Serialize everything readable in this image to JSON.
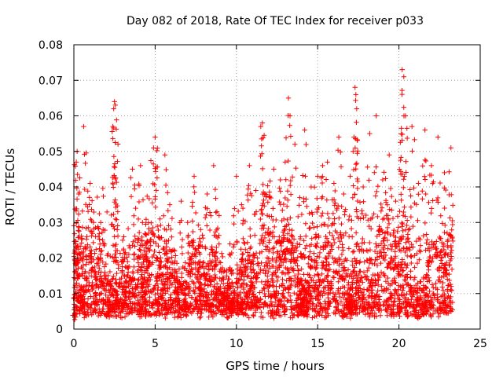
{
  "chart_data": {
    "type": "scatter",
    "title": "Day 082 of 2018, Rate Of TEC Index for receiver p033",
    "xlabel": "GPS time / hours",
    "ylabel": "ROTI / TECUs",
    "xlim": [
      0,
      25
    ],
    "ylim": [
      0,
      0.08
    ],
    "xticks": [
      0,
      5,
      10,
      15,
      20,
      25
    ],
    "xtick_labels": [
      "0",
      "5",
      "10",
      "15",
      "20",
      "25"
    ],
    "yticks": [
      0,
      0.01,
      0.02,
      0.03,
      0.04,
      0.05,
      0.06,
      0.07,
      0.08
    ],
    "ytick_labels": [
      "0",
      "0.01",
      "0.02",
      "0.03",
      "0.04",
      "0.05",
      "0.06",
      "0.07",
      "0.08"
    ],
    "grid": true,
    "marker": "+",
    "color": "#ff0000",
    "data_range_hours": [
      0.0,
      23.3
    ],
    "series": [
      {
        "name": "ROTI",
        "points": [
          [
            0.05,
            0.006
          ],
          [
            0.1,
            0.024
          ],
          [
            0.15,
            0.047
          ],
          [
            0.2,
            0.05
          ],
          [
            0.3,
            0.038
          ],
          [
            0.45,
            0.012
          ],
          [
            0.6,
            0.057
          ],
          [
            0.8,
            0.026
          ],
          [
            1.0,
            0.041
          ],
          [
            1.2,
            0.03
          ],
          [
            1.5,
            0.018
          ],
          [
            1.8,
            0.028
          ],
          [
            2.1,
            0.009
          ],
          [
            2.4,
            0.057
          ],
          [
            2.45,
            0.062
          ],
          [
            2.5,
            0.064
          ],
          [
            2.55,
            0.063
          ],
          [
            2.7,
            0.033
          ],
          [
            3.0,
            0.025
          ],
          [
            3.3,
            0.019
          ],
          [
            3.6,
            0.045
          ],
          [
            3.8,
            0.034
          ],
          [
            4.1,
            0.046
          ],
          [
            4.3,
            0.02
          ],
          [
            4.6,
            0.027
          ],
          [
            4.9,
            0.051
          ],
          [
            5.0,
            0.054
          ],
          [
            5.3,
            0.031
          ],
          [
            5.6,
            0.049
          ],
          [
            5.9,
            0.035
          ],
          [
            6.2,
            0.022
          ],
          [
            6.6,
            0.036
          ],
          [
            7.0,
            0.03
          ],
          [
            7.4,
            0.043
          ],
          [
            7.8,
            0.028
          ],
          [
            8.2,
            0.038
          ],
          [
            8.6,
            0.046
          ],
          [
            8.8,
            0.033
          ],
          [
            9.2,
            0.014
          ],
          [
            9.6,
            0.024
          ],
          [
            10.0,
            0.043
          ],
          [
            10.4,
            0.034
          ],
          [
            10.8,
            0.046
          ],
          [
            11.2,
            0.039
          ],
          [
            11.5,
            0.057
          ],
          [
            11.6,
            0.058
          ],
          [
            11.9,
            0.032
          ],
          [
            12.3,
            0.045
          ],
          [
            12.7,
            0.042
          ],
          [
            13.0,
            0.047
          ],
          [
            13.2,
            0.065
          ],
          [
            13.3,
            0.06
          ],
          [
            13.6,
            0.052
          ],
          [
            13.9,
            0.037
          ],
          [
            14.2,
            0.056
          ],
          [
            14.6,
            0.04
          ],
          [
            15.0,
            0.043
          ],
          [
            15.3,
            0.046
          ],
          [
            15.6,
            0.047
          ],
          [
            16.0,
            0.041
          ],
          [
            16.3,
            0.054
          ],
          [
            16.6,
            0.038
          ],
          [
            17.0,
            0.043
          ],
          [
            17.3,
            0.068
          ],
          [
            17.35,
            0.066
          ],
          [
            17.4,
            0.062
          ],
          [
            17.8,
            0.04
          ],
          [
            18.2,
            0.055
          ],
          [
            18.6,
            0.06
          ],
          [
            19.0,
            0.042
          ],
          [
            19.4,
            0.049
          ],
          [
            19.8,
            0.036
          ],
          [
            20.2,
            0.073
          ],
          [
            20.3,
            0.071
          ],
          [
            20.4,
            0.06
          ],
          [
            20.8,
            0.057
          ],
          [
            21.2,
            0.041
          ],
          [
            21.6,
            0.056
          ],
          [
            22.0,
            0.046
          ],
          [
            22.4,
            0.054
          ],
          [
            22.8,
            0.044
          ],
          [
            23.2,
            0.051
          ]
        ]
      }
    ]
  }
}
